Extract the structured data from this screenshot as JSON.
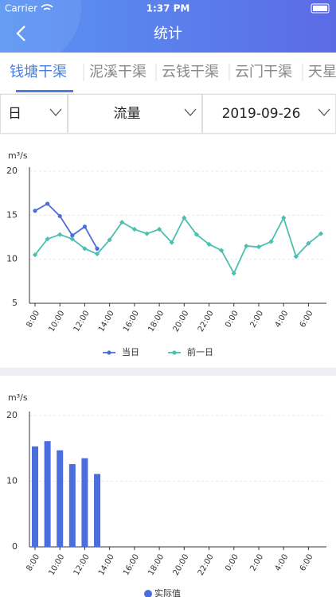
{
  "status_bar": {
    "carrier": "Carrier",
    "time": "1:37 PM"
  },
  "header": {
    "title": "统计"
  },
  "tabs": [
    "钱塘干渠",
    "泥溪干渠",
    "云钱干渠",
    "云门干渠",
    "天星"
  ],
  "filters": [
    "日",
    "流量",
    "2019-09-26"
  ],
  "chart_data": [
    {
      "type": "line",
      "ylabel": "m³/s",
      "categories": [
        "8:00",
        null,
        "10:00",
        null,
        "12:00",
        null,
        "14:00",
        null,
        "16:00",
        null,
        "18:00",
        null,
        "20:00",
        null,
        "22:00",
        null,
        "0:00",
        null,
        "2:00",
        null,
        "4:00",
        null,
        "6:00",
        null
      ],
      "series": [
        {
          "name": "当日",
          "color": "#4a6fdc",
          "values": [
            15.5,
            16.3,
            14.9,
            12.7,
            13.7,
            11.2,
            null,
            null,
            null,
            null,
            null,
            null,
            null,
            null,
            null,
            null,
            null,
            null,
            null,
            null,
            null,
            null,
            null,
            null
          ]
        },
        {
          "name": "前一日",
          "color": "#4bbfb0",
          "values": [
            10.5,
            12.3,
            12.8,
            12.3,
            11.2,
            10.6,
            12.2,
            14.2,
            13.4,
            12.9,
            13.4,
            11.9,
            14.7,
            12.8,
            11.7,
            11.0,
            8.4,
            11.5,
            11.4,
            12.0,
            14.7,
            10.3,
            11.8,
            12.9
          ]
        }
      ],
      "ylim": [
        5,
        20
      ],
      "yticks": [
        5,
        10,
        15,
        20
      ],
      "grid": true
    },
    {
      "type": "bar",
      "ylabel": "m³/s",
      "categories": [
        "8:00",
        null,
        "10:00",
        null,
        "12:00",
        null,
        "14:00",
        null,
        "16:00",
        null,
        "18:00",
        null,
        "20:00",
        null,
        "22:00",
        null,
        "0:00",
        null,
        "2:00",
        null,
        "4:00",
        null,
        "6:00",
        null
      ],
      "series": [
        {
          "name": "实际值",
          "color": "#4a6fdc",
          "values": [
            15.3,
            16.1,
            14.7,
            12.6,
            13.5,
            11.1,
            null,
            null,
            null,
            null,
            null,
            null,
            null,
            null,
            null,
            null,
            null,
            null,
            null,
            null,
            null,
            null,
            null,
            null
          ]
        }
      ],
      "ylim": [
        0,
        20
      ],
      "yticks": [
        0,
        10,
        20
      ],
      "grid": true
    }
  ]
}
